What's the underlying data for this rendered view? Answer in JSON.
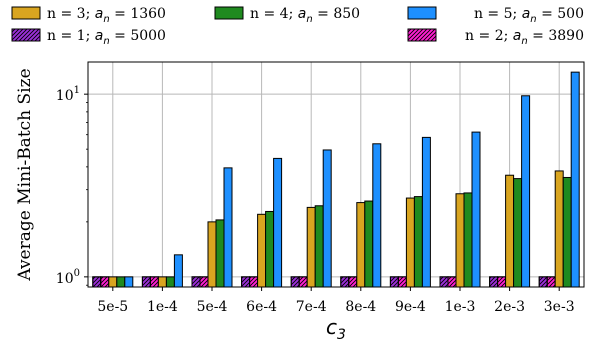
{
  "chart_data": {
    "type": "bar",
    "ylabel": "Average Mini-Batch Size",
    "xlabel": {
      "base": "c",
      "sub": "3"
    },
    "y_scale": "log",
    "ylim": [
      0.88,
      15
    ],
    "y_ticks": [
      {
        "value": 1,
        "base": "10",
        "exp": "0"
      },
      {
        "value": 10,
        "base": "10",
        "exp": "1"
      }
    ],
    "grid": true,
    "categories": [
      "5e-5",
      "1e-4",
      "5e-4",
      "6e-4",
      "7e-4",
      "8e-4",
      "9e-4",
      "1e-3",
      "2e-3",
      "3e-3"
    ],
    "series": [
      {
        "id": "n1",
        "n": "n = 1",
        "a": "5000",
        "color": "#9b30d9",
        "hatch": true,
        "values": [
          1,
          1,
          1,
          1,
          1,
          1,
          1,
          1,
          1,
          1
        ]
      },
      {
        "id": "n2",
        "n": "n = 2",
        "a": "3890",
        "color": "#ff1fd2",
        "hatch": true,
        "values": [
          1,
          1,
          1,
          1,
          1,
          1,
          1,
          1,
          1,
          1
        ]
      },
      {
        "id": "n3",
        "n": "n = 3",
        "a": "1360",
        "color": "#d9a520",
        "hatch": false,
        "values": [
          1,
          1,
          2.0,
          2.2,
          2.4,
          2.55,
          2.7,
          2.85,
          3.6,
          3.8
        ]
      },
      {
        "id": "n4",
        "n": "n = 4",
        "a": "850",
        "color": "#1f8a1f",
        "hatch": false,
        "values": [
          1,
          1,
          2.05,
          2.28,
          2.45,
          2.6,
          2.75,
          2.88,
          3.45,
          3.5
        ]
      },
      {
        "id": "n5",
        "n": "n = 5",
        "a": "500",
        "color": "#1e90ff",
        "hatch": false,
        "values": [
          1,
          1.32,
          3.95,
          4.45,
          4.95,
          5.35,
          5.8,
          6.2,
          9.8,
          13.2
        ]
      }
    ],
    "legend": {
      "row1": [
        "n3",
        "n4",
        "n5"
      ],
      "row2": [
        "n1",
        "n2"
      ],
      "a_symbol": "a",
      "a_sub": "n",
      "eq": "="
    }
  }
}
